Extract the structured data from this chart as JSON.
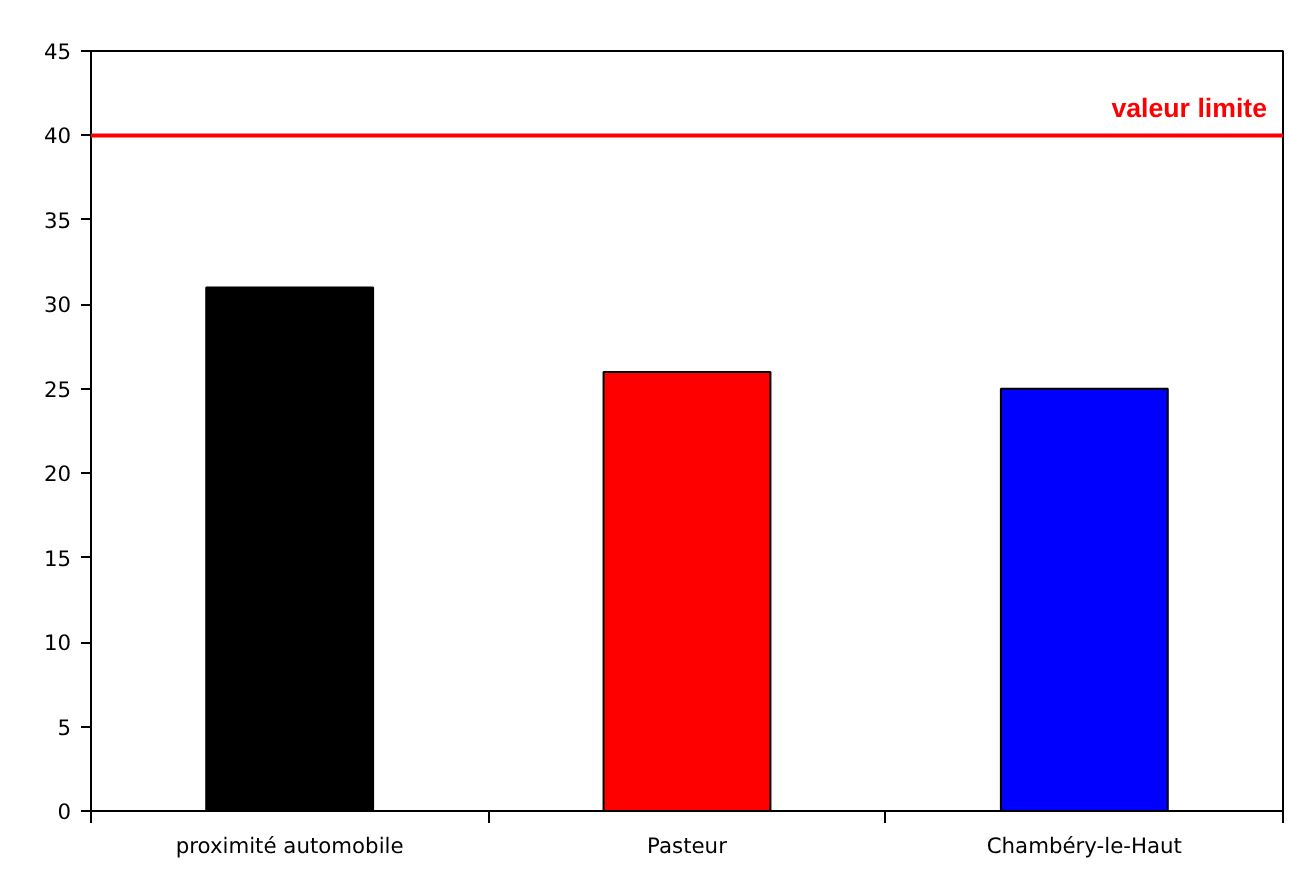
{
  "chart_data": {
    "type": "bar",
    "categories": [
      "proximité automobile",
      "Pasteur",
      "Chambéry-le-Haut"
    ],
    "values": [
      31,
      26,
      25
    ],
    "colors": [
      "#000000",
      "#ff0000",
      "#0000ff"
    ],
    "ylim": [
      0,
      45
    ],
    "yticks": [
      0,
      5,
      10,
      15,
      20,
      25,
      30,
      35,
      40,
      45
    ],
    "grid": false,
    "ref_lines": [
      {
        "axis": "y",
        "value": 40,
        "label": "valeur limite",
        "color": "#ff0000"
      }
    ]
  }
}
